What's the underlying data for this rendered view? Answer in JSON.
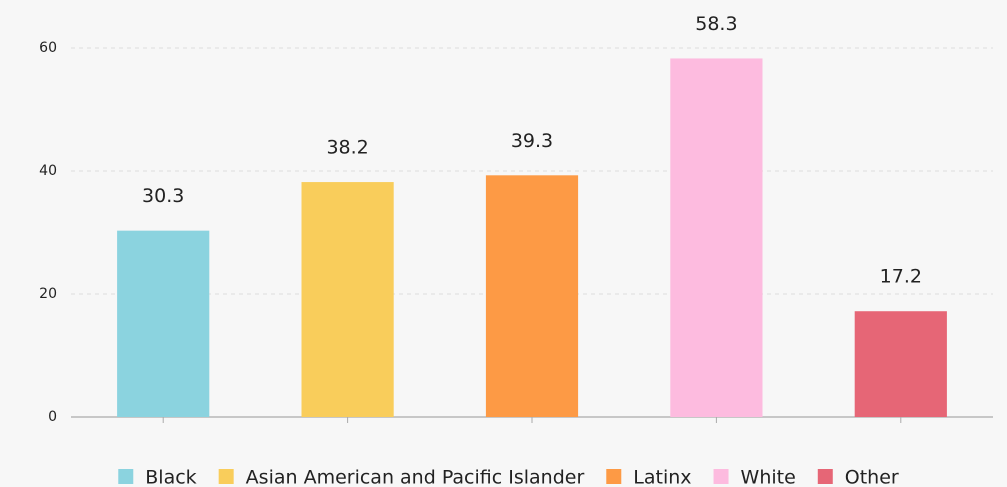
{
  "chart_data": {
    "type": "bar",
    "categories": [
      "Black",
      "Asian American and Pacific Islander",
      "Latinx",
      "White",
      "Other"
    ],
    "values": [
      30.3,
      38.2,
      39.3,
      58.3,
      17.2
    ],
    "colors": [
      "#8bd3df",
      "#f9cd5b",
      "#fd9a45",
      "#fdbbdf",
      "#e66676"
    ],
    "ylim": [
      0,
      60
    ],
    "yticks": [
      0,
      20,
      40,
      60
    ],
    "grid": true,
    "legend": "bottom"
  }
}
